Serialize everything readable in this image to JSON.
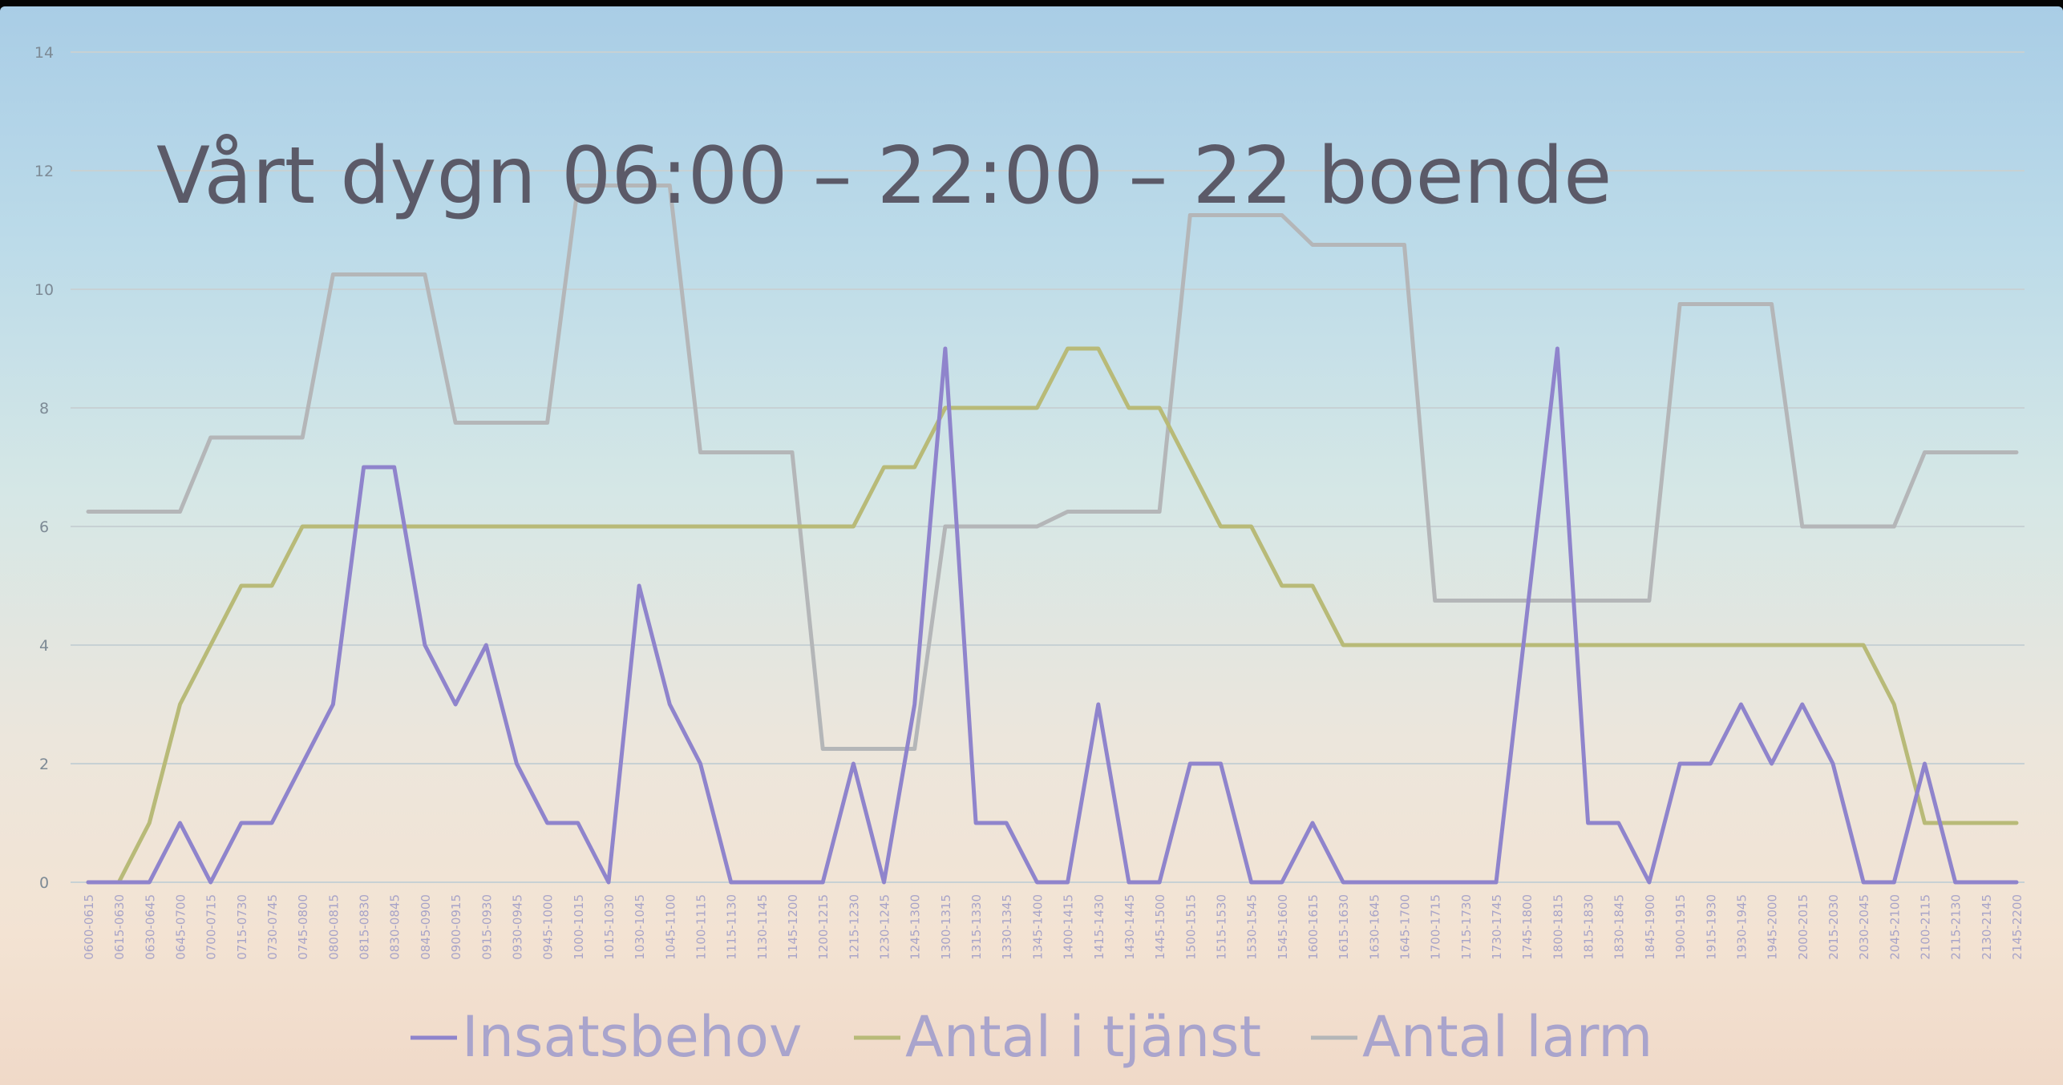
{
  "chart_data": {
    "type": "line",
    "title": "Vårt dygn 06:00 – 22:00 – 22 boende",
    "xlabel": "",
    "ylabel": "",
    "ylim": [
      0,
      14
    ],
    "yticks": [
      0,
      2,
      4,
      6,
      8,
      10,
      12,
      14
    ],
    "grid": true,
    "legend": "bottom",
    "categories": [
      "0600-0615",
      "0615-0630",
      "0630-0645",
      "0645-0700",
      "0700-0715",
      "0715-0730",
      "0730-0745",
      "0745-0800",
      "0800-0815",
      "0815-0830",
      "0830-0845",
      "0845-0900",
      "0900-0915",
      "0915-0930",
      "0930-0945",
      "0945-1000",
      "1000-1015",
      "1015-1030",
      "1030-1045",
      "1045-1100",
      "1100-1115",
      "1115-1130",
      "1130-1145",
      "1145-1200",
      "1200-1215",
      "1215-1230",
      "1230-1245",
      "1245-1300",
      "1300-1315",
      "1315-1330",
      "1330-1345",
      "1345-1400",
      "1400-1415",
      "1415-1430",
      "1430-1445",
      "1445-1500",
      "1500-1515",
      "1515-1530",
      "1530-1545",
      "1545-1600",
      "1600-1615",
      "1615-1630",
      "1630-1645",
      "1645-1700",
      "1700-1715",
      "1715-1730",
      "1730-1745",
      "1745-1800",
      "1800-1815",
      "1815-1830",
      "1830-1845",
      "1845-1900",
      "1900-1915",
      "1915-1930",
      "1930-1945",
      "1945-2000",
      "2000-2015",
      "2015-2030",
      "2030-2045",
      "2045-2100",
      "2100-2115",
      "2115-2130",
      "2130-2145",
      "2145-2200"
    ],
    "series": [
      {
        "name": "Insatsbehov",
        "color": "#8f84cc",
        "values": [
          0,
          0,
          0,
          1,
          0,
          1,
          1,
          2,
          3,
          7,
          7,
          4,
          3,
          4,
          2,
          1,
          1,
          0,
          5,
          3,
          2,
          0,
          0,
          0,
          0,
          2,
          0,
          3,
          9,
          1,
          1,
          0,
          0,
          3,
          0,
          0,
          2,
          2,
          0,
          0,
          1,
          0,
          0,
          0,
          0,
          0,
          0,
          4.5,
          9,
          1,
          1,
          0,
          2,
          2,
          3,
          2,
          3,
          2,
          0,
          0,
          2,
          0,
          0,
          0
        ]
      },
      {
        "name": "Antal i tjänst",
        "color": "#b8ba78",
        "values": [
          0,
          0,
          1,
          3,
          4,
          5,
          5,
          6,
          6,
          6,
          6,
          6,
          6,
          6,
          6,
          6,
          6,
          6,
          6,
          6,
          6,
          6,
          6,
          6,
          6,
          6,
          7,
          7,
          8,
          8,
          8,
          8,
          9,
          9,
          8,
          8,
          7,
          6,
          6,
          5,
          5,
          4,
          4,
          4,
          4,
          4,
          4,
          4,
          4,
          4,
          4,
          4,
          4,
          4,
          4,
          4,
          4,
          4,
          4,
          3,
          1,
          1,
          1,
          1
        ]
      },
      {
        "name": "Antal larm",
        "color": "#b4b6b8",
        "values": [
          6.25,
          6.25,
          6.25,
          6.25,
          7.5,
          7.5,
          7.5,
          7.5,
          10.25,
          10.25,
          10.25,
          10.25,
          7.75,
          7.75,
          7.75,
          7.75,
          11.75,
          11.75,
          11.75,
          11.75,
          7.25,
          7.25,
          7.25,
          7.25,
          2.25,
          2.25,
          2.25,
          2.25,
          6,
          6,
          6,
          6,
          6.25,
          6.25,
          6.25,
          6.25,
          11.25,
          11.25,
          11.25,
          11.25,
          10.75,
          10.75,
          10.75,
          10.75,
          4.75,
          4.75,
          4.75,
          4.75,
          4.75,
          4.75,
          4.75,
          4.75,
          9.75,
          9.75,
          9.75,
          9.75,
          6,
          6,
          6,
          6,
          7.25,
          7.25,
          7.25,
          7.25
        ]
      }
    ]
  }
}
